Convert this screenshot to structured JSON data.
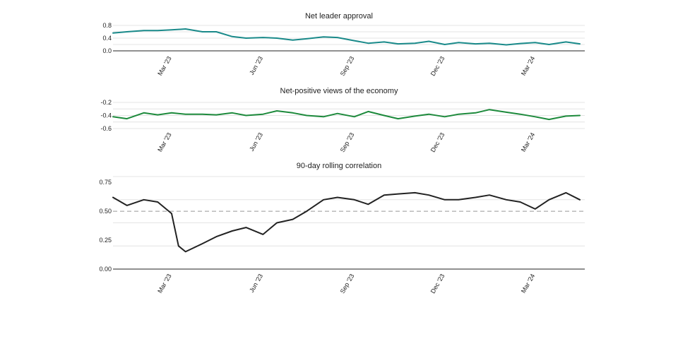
{
  "chart_data": [
    {
      "type": "line",
      "title": "Net leader approval",
      "xlabel": "",
      "ylabel": "",
      "x_ticks": [
        "Mar '23",
        "Jun '23",
        "Sep '23",
        "Dec '23",
        "Mar '24"
      ],
      "y_ticks": [
        "0.8",
        "0.4",
        "0.0"
      ],
      "ylim": [
        0.0,
        0.8
      ],
      "grid": true,
      "color": "#1a8a8a",
      "x": [
        "2023-01-01",
        "2023-01-15",
        "2023-02-01",
        "2023-02-15",
        "2023-03-01",
        "2023-03-15",
        "2023-04-01",
        "2023-04-15",
        "2023-05-01",
        "2023-05-15",
        "2023-06-01",
        "2023-06-15",
        "2023-07-01",
        "2023-07-15",
        "2023-08-01",
        "2023-08-15",
        "2023-09-01",
        "2023-09-15",
        "2023-10-01",
        "2023-10-15",
        "2023-11-01",
        "2023-11-15",
        "2023-12-01",
        "2023-12-15",
        "2024-01-01",
        "2024-01-15",
        "2024-02-01",
        "2024-02-15",
        "2024-03-01",
        "2024-03-15",
        "2024-04-01",
        "2024-04-15"
      ],
      "series": [
        {
          "values": [
            0.56,
            0.6,
            0.64,
            0.64,
            0.66,
            0.69,
            0.6,
            0.6,
            0.45,
            0.4,
            0.42,
            0.4,
            0.34,
            0.38,
            0.44,
            0.42,
            0.32,
            0.24,
            0.28,
            0.22,
            0.24,
            0.3,
            0.2,
            0.26,
            0.22,
            0.24,
            0.19,
            0.23,
            0.26,
            0.2,
            0.28,
            0.22
          ]
        }
      ]
    },
    {
      "type": "line",
      "title": "Net-positive views of the economy",
      "xlabel": "",
      "ylabel": "",
      "x_ticks": [
        "Mar '23",
        "Jun '23",
        "Sep '23",
        "Dec '23",
        "Mar '24"
      ],
      "y_ticks": [
        "-0.2",
        "-0.4",
        "-0.6"
      ],
      "ylim": [
        -0.6,
        -0.2
      ],
      "grid": true,
      "color": "#1d8a3c",
      "x": [
        "2023-01-01",
        "2023-01-15",
        "2023-02-01",
        "2023-02-15",
        "2023-03-01",
        "2023-03-15",
        "2023-04-01",
        "2023-04-15",
        "2023-05-01",
        "2023-05-15",
        "2023-06-01",
        "2023-06-15",
        "2023-07-01",
        "2023-07-15",
        "2023-08-01",
        "2023-08-15",
        "2023-09-01",
        "2023-09-15",
        "2023-10-01",
        "2023-10-15",
        "2023-11-01",
        "2023-11-15",
        "2023-12-01",
        "2023-12-15",
        "2024-01-01",
        "2024-01-15",
        "2024-02-01",
        "2024-02-15",
        "2024-03-01",
        "2024-03-15",
        "2024-04-01",
        "2024-04-15"
      ],
      "series": [
        {
          "values": [
            -0.42,
            -0.45,
            -0.36,
            -0.39,
            -0.36,
            -0.38,
            -0.38,
            -0.39,
            -0.36,
            -0.4,
            -0.38,
            -0.33,
            -0.36,
            -0.4,
            -0.42,
            -0.37,
            -0.42,
            -0.34,
            -0.4,
            -0.45,
            -0.41,
            -0.38,
            -0.42,
            -0.38,
            -0.36,
            -0.31,
            -0.35,
            -0.38,
            -0.42,
            -0.46,
            -0.41,
            -0.4
          ]
        }
      ]
    },
    {
      "type": "line",
      "title": "90-day rolling correlation",
      "xlabel": "",
      "ylabel": "",
      "x_ticks": [
        "Mar '23",
        "Jun '23",
        "Sep '23",
        "Dec '23",
        "Mar '24"
      ],
      "y_ticks": [
        "0.75",
        "0.50",
        "0.25",
        "0.00"
      ],
      "ylim": [
        0.0,
        0.8
      ],
      "grid": true,
      "reference_line": 0.5,
      "color": "#222222",
      "x": [
        "2023-01-01",
        "2023-01-15",
        "2023-02-01",
        "2023-02-15",
        "2023-03-01",
        "2023-03-08",
        "2023-03-15",
        "2023-04-01",
        "2023-04-15",
        "2023-05-01",
        "2023-05-15",
        "2023-06-01",
        "2023-06-15",
        "2023-07-01",
        "2023-07-15",
        "2023-08-01",
        "2023-08-15",
        "2023-09-01",
        "2023-09-15",
        "2023-10-01",
        "2023-10-15",
        "2023-11-01",
        "2023-11-15",
        "2023-12-01",
        "2023-12-15",
        "2024-01-01",
        "2024-01-15",
        "2024-02-01",
        "2024-02-15",
        "2024-03-01",
        "2024-03-15",
        "2024-04-01",
        "2024-04-15"
      ],
      "series": [
        {
          "values": [
            0.62,
            0.55,
            0.6,
            0.58,
            0.48,
            0.2,
            0.15,
            0.22,
            0.28,
            0.33,
            0.36,
            0.3,
            0.4,
            0.43,
            0.5,
            0.6,
            0.62,
            0.6,
            0.56,
            0.64,
            0.65,
            0.66,
            0.64,
            0.6,
            0.6,
            0.62,
            0.64,
            0.6,
            0.58,
            0.52,
            0.6,
            0.66,
            0.6
          ]
        }
      ]
    }
  ]
}
